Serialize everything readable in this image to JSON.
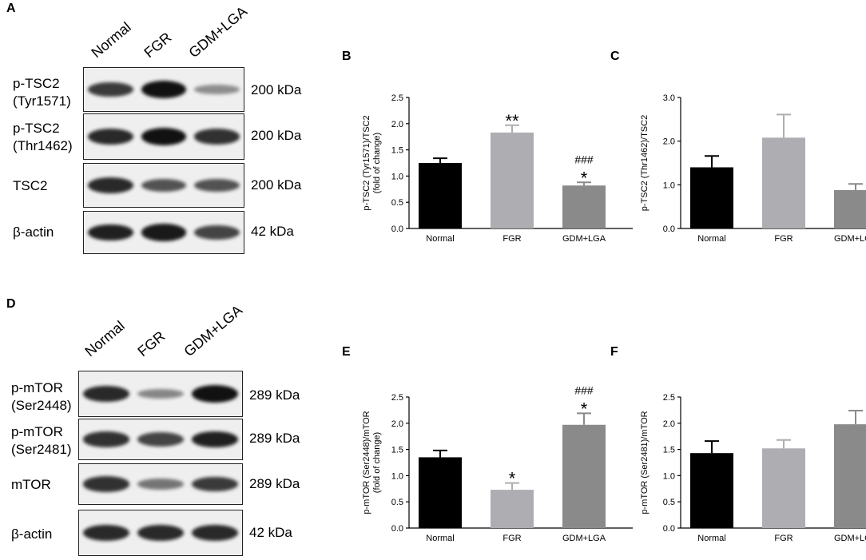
{
  "panels": {
    "A": "A",
    "B": "B",
    "C": "C",
    "D": "D",
    "E": "E",
    "F": "F"
  },
  "blot_top": {
    "lanes": [
      "Normal",
      "FGR",
      "GDM+LGA"
    ],
    "rows": [
      {
        "label_line1": "p-TSC2",
        "label_line2": "(Tyr1571)",
        "kda": "200 kDa",
        "intensity": [
          0.75,
          1.0,
          0.25
        ]
      },
      {
        "label_line1": "p-TSC2",
        "label_line2": "(Thr1462)",
        "kda": "200 kDa",
        "intensity": [
          0.85,
          1.0,
          0.8
        ]
      },
      {
        "label_line1": "TSC2",
        "label_line2": "",
        "kda": "200 kDa",
        "intensity": [
          0.85,
          0.6,
          0.6
        ]
      },
      {
        "label_line1": "β-actin",
        "label_line2": "",
        "kda": "42 kDa",
        "intensity": [
          0.9,
          0.95,
          0.7
        ]
      }
    ]
  },
  "blot_bottom": {
    "lanes": [
      "Normal",
      "FGR",
      "GDM+LGA"
    ],
    "rows": [
      {
        "label_line1": "p-mTOR",
        "label_line2": "(Ser2448)",
        "kda": "289 kDa",
        "intensity": [
          0.85,
          0.3,
          1.0
        ]
      },
      {
        "label_line1": "p-mTOR",
        "label_line2": "(Ser2481)",
        "kda": "289 kDa",
        "intensity": [
          0.8,
          0.7,
          0.9
        ]
      },
      {
        "label_line1": "mTOR",
        "label_line2": "",
        "kda": "289 kDa",
        "intensity": [
          0.8,
          0.4,
          0.75
        ]
      },
      {
        "label_line1": "β-actin",
        "label_line2": "",
        "kda": "42 kDa",
        "intensity": [
          0.85,
          0.85,
          0.85
        ]
      }
    ]
  },
  "chart_data": [
    {
      "id": "B",
      "type": "bar",
      "categories": [
        "Normal",
        "FGR",
        "GDM+LGA"
      ],
      "values": [
        1.25,
        1.83,
        0.82
      ],
      "errors": [
        0.09,
        0.14,
        0.06
      ],
      "colors": [
        "#000000",
        "#aeaeb2",
        "#8a8a8a"
      ],
      "ylabel_line1": "p-TSC2 (Tyr1571)/TSC2",
      "ylabel_line2": "(fold of change)",
      "ylim": [
        0,
        2.5
      ],
      "yticks": [
        "0.0",
        "0.5",
        "1.0",
        "1.5",
        "2.0",
        "2.5"
      ],
      "annotations": [
        {
          "bar": 1,
          "stars": "**",
          "hash": ""
        },
        {
          "bar": 2,
          "stars": "*",
          "hash": "###"
        }
      ]
    },
    {
      "id": "C",
      "type": "bar",
      "categories": [
        "Normal",
        "FGR",
        "GDM+LGA"
      ],
      "values": [
        1.4,
        2.08,
        0.88
      ],
      "errors": [
        0.26,
        0.53,
        0.14
      ],
      "colors": [
        "#000000",
        "#aeaeb2",
        "#8a8a8a"
      ],
      "ylabel_line1": "p-TSC2 (Thr1462)/TSC2",
      "ylabel_line2": "",
      "ylim": [
        0,
        3.0
      ],
      "yticks": [
        "0.0",
        "1.0",
        "2.0",
        "3.0"
      ],
      "annotations": []
    },
    {
      "id": "E",
      "type": "bar",
      "categories": [
        "Normal",
        "FGR",
        "GDM+LGA"
      ],
      "values": [
        1.35,
        0.73,
        1.97
      ],
      "errors": [
        0.13,
        0.13,
        0.22
      ],
      "colors": [
        "#000000",
        "#aeaeb2",
        "#8a8a8a"
      ],
      "ylabel_line1": "p-mTOR (Ser2448)/mTOR",
      "ylabel_line2": "(fold of change)",
      "ylim": [
        0,
        2.5
      ],
      "yticks": [
        "0.0",
        "0.5",
        "1.0",
        "1.5",
        "2.0",
        "2.5"
      ],
      "annotations": [
        {
          "bar": 1,
          "stars": "*",
          "hash": ""
        },
        {
          "bar": 2,
          "stars": "*",
          "hash": "###"
        }
      ]
    },
    {
      "id": "F",
      "type": "bar",
      "categories": [
        "Normal",
        "FGR",
        "GDM+LGA"
      ],
      "values": [
        1.43,
        1.52,
        1.98
      ],
      "errors": [
        0.23,
        0.16,
        0.26
      ],
      "colors": [
        "#000000",
        "#aeaeb2",
        "#8a8a8a"
      ],
      "ylabel_line1": "p-mTOR (Ser2481)/mTOR",
      "ylabel_line2": "",
      "ylim": [
        0,
        2.5
      ],
      "yticks": [
        "0.0",
        "0.5",
        "1.0",
        "1.5",
        "2.0",
        "2.5"
      ],
      "annotations": []
    }
  ]
}
